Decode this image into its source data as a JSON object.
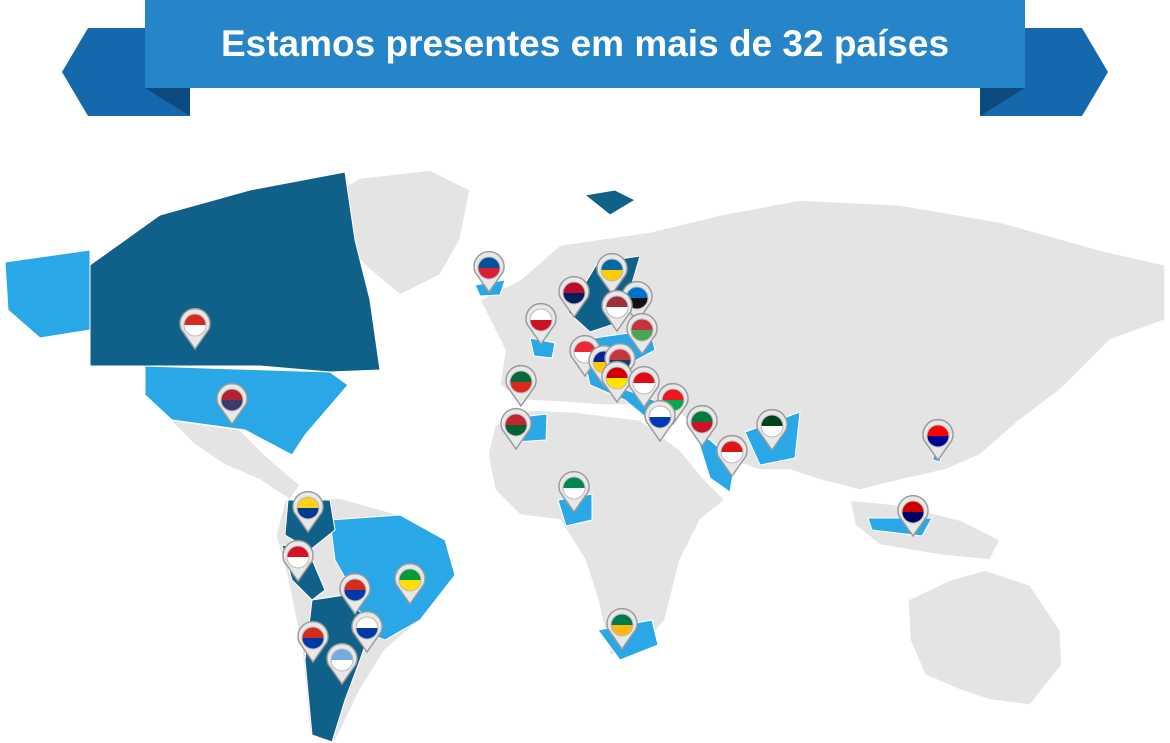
{
  "banner": {
    "title": "Estamos presentes em mais de 32 países"
  }
}
